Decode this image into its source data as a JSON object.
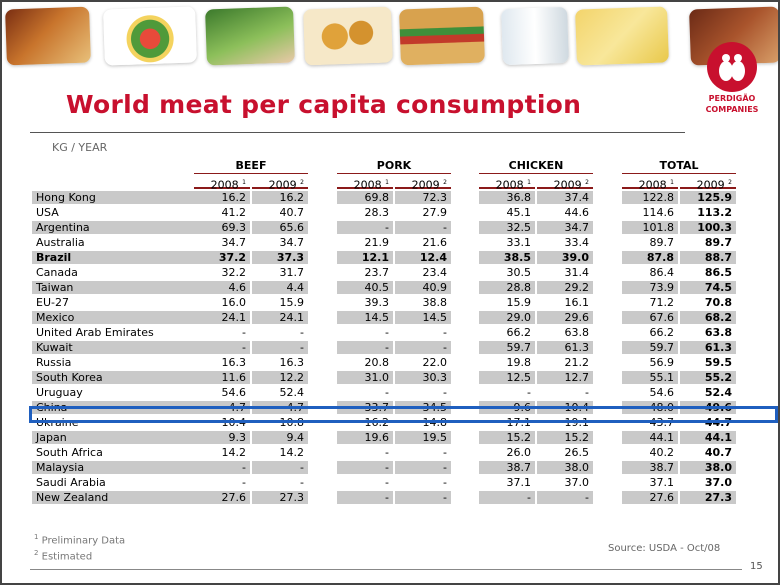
{
  "title": "World meat per capita consumption",
  "unit": "KG / YEAR",
  "logo": {
    "line1": "PERDIGÃO",
    "line2": "COMPANIES"
  },
  "groups": [
    "BEEF",
    "PORK",
    "CHICKEN",
    "TOTAL"
  ],
  "years": [
    "2008",
    "2009"
  ],
  "footnote_marks": [
    "1",
    "2"
  ],
  "rows": [
    {
      "country": "Hong Kong",
      "v": [
        "16.2",
        "16.2",
        "69.8",
        "72.3",
        "36.8",
        "37.4",
        "122.8",
        "125.9"
      ]
    },
    {
      "country": "USA",
      "v": [
        "41.2",
        "40.7",
        "28.3",
        "27.9",
        "45.1",
        "44.6",
        "114.6",
        "113.2"
      ]
    },
    {
      "country": "Argentina",
      "v": [
        "69.3",
        "65.6",
        "-",
        "-",
        "32.5",
        "34.7",
        "101.8",
        "100.3"
      ]
    },
    {
      "country": "Australia",
      "v": [
        "34.7",
        "34.7",
        "21.9",
        "21.6",
        "33.1",
        "33.4",
        "89.7",
        "89.7"
      ]
    },
    {
      "country": "Brazil",
      "v": [
        "37.2",
        "37.3",
        "12.1",
        "12.4",
        "38.5",
        "39.0",
        "87.8",
        "88.7"
      ]
    },
    {
      "country": "Canada",
      "v": [
        "32.2",
        "31.7",
        "23.7",
        "23.4",
        "30.5",
        "31.4",
        "86.4",
        "86.5"
      ]
    },
    {
      "country": "Taiwan",
      "v": [
        "4.6",
        "4.4",
        "40.5",
        "40.9",
        "28.8",
        "29.2",
        "73.9",
        "74.5"
      ]
    },
    {
      "country": "EU-27",
      "v": [
        "16.0",
        "15.9",
        "39.3",
        "38.8",
        "15.9",
        "16.1",
        "71.2",
        "70.8"
      ]
    },
    {
      "country": "Mexico",
      "v": [
        "24.1",
        "24.1",
        "14.5",
        "14.5",
        "29.0",
        "29.6",
        "67.6",
        "68.2"
      ]
    },
    {
      "country": "United Arab Emirates",
      "v": [
        "-",
        "-",
        "-",
        "-",
        "66.2",
        "63.8",
        "66.2",
        "63.8"
      ]
    },
    {
      "country": "Kuwait",
      "v": [
        "-",
        "-",
        "-",
        "-",
        "59.7",
        "61.3",
        "59.7",
        "61.3"
      ]
    },
    {
      "country": "Russia",
      "v": [
        "16.3",
        "16.3",
        "20.8",
        "22.0",
        "19.8",
        "21.2",
        "56.9",
        "59.5"
      ]
    },
    {
      "country": "South Korea",
      "v": [
        "11.6",
        "12.2",
        "31.0",
        "30.3",
        "12.5",
        "12.7",
        "55.1",
        "55.2"
      ]
    },
    {
      "country": "Uruguay",
      "v": [
        "54.6",
        "52.4",
        "-",
        "-",
        "-",
        "-",
        "54.6",
        "52.4"
      ]
    },
    {
      "country": "China",
      "v": [
        "4.7",
        "4.7",
        "33.7",
        "34.5",
        "9.6",
        "10.4",
        "48.0",
        "49.6"
      ]
    },
    {
      "country": "Ukraine",
      "v": [
        "10.4",
        "10.8",
        "16.2",
        "14.8",
        "17.1",
        "19.1",
        "43.7",
        "44.7"
      ]
    },
    {
      "country": "Japan",
      "v": [
        "9.3",
        "9.4",
        "19.6",
        "19.5",
        "15.2",
        "15.2",
        "44.1",
        "44.1"
      ]
    },
    {
      "country": "South Africa",
      "v": [
        "14.2",
        "14.2",
        "-",
        "-",
        "26.0",
        "26.5",
        "40.2",
        "40.7"
      ]
    },
    {
      "country": "Malaysia",
      "v": [
        "-",
        "-",
        "-",
        "-",
        "38.7",
        "38.0",
        "38.7",
        "38.0"
      ]
    },
    {
      "country": "Saudi Arabia",
      "v": [
        "-",
        "-",
        "-",
        "-",
        "37.1",
        "37.0",
        "37.1",
        "37.0"
      ]
    },
    {
      "country": "New Zealand",
      "v": [
        "27.6",
        "27.3",
        "-",
        "-",
        "-",
        "-",
        "27.6",
        "27.3"
      ]
    }
  ],
  "notes": [
    {
      "mark": "1",
      "text": "Preliminary Data"
    },
    {
      "mark": "2",
      "text": "Estimated"
    }
  ],
  "source": "Source: USDA - Oct/08",
  "page_number": "15",
  "colors": {
    "brand_red": "#c8102e",
    "header_rule": "#8b1a1a",
    "highlight_blue": "#1f5fbf",
    "row_shade": "#c9c9c9"
  }
}
